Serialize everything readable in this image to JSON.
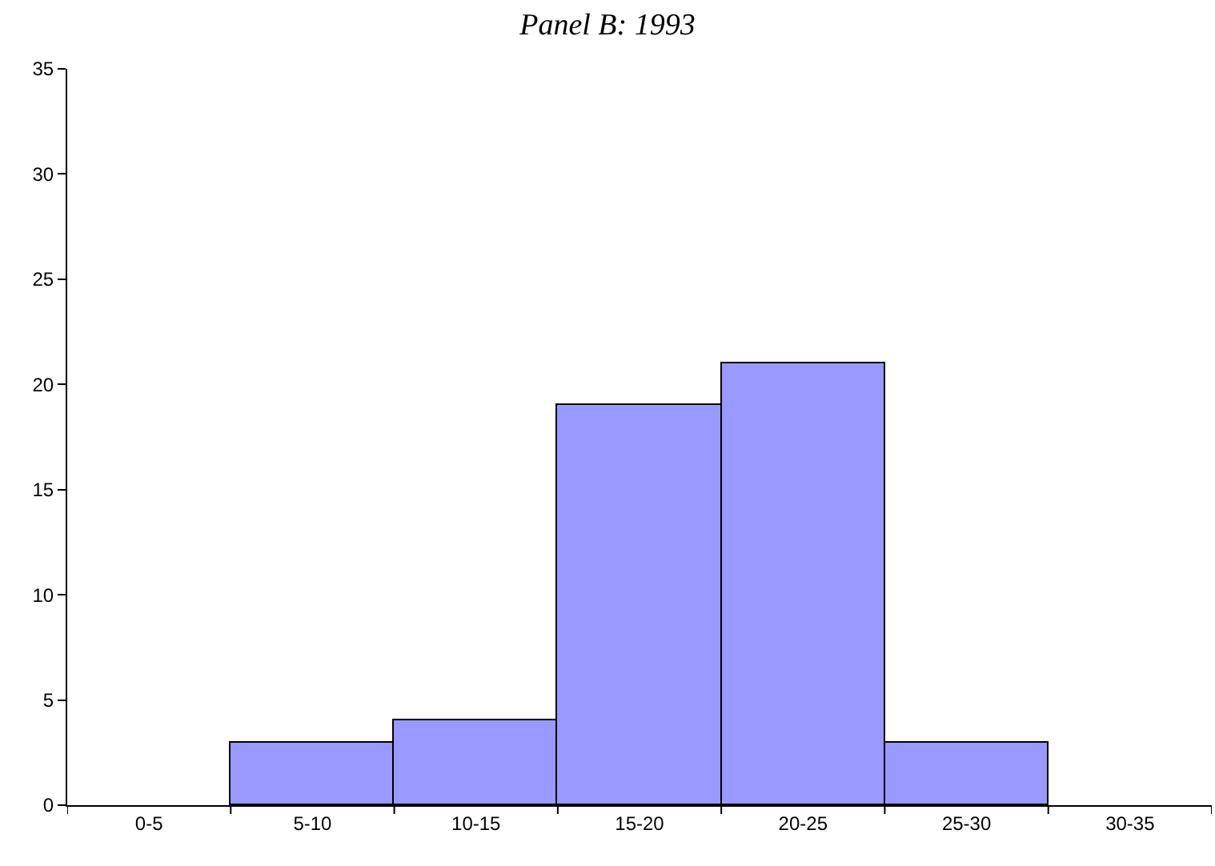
{
  "chart_data": {
    "type": "bar",
    "title": "Panel B: 1993",
    "categories": [
      "0-5",
      "5-10",
      "10-15",
      "15-20",
      "20-25",
      "25-30",
      "30-35"
    ],
    "values": [
      0,
      3,
      4,
      19,
      21,
      3,
      0
    ],
    "color": "#9999ff",
    "ylim": [
      0,
      35
    ],
    "yticks": [
      0,
      5,
      10,
      15,
      20,
      25,
      30,
      35
    ],
    "tick_labels": "xy"
  }
}
